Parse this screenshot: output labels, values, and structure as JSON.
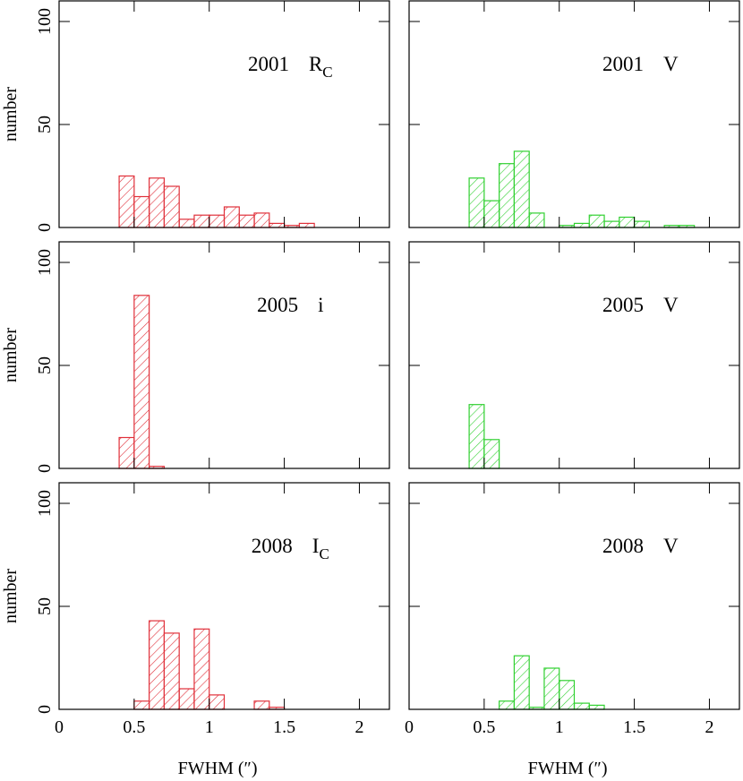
{
  "chart_data": [
    {
      "type": "histogram",
      "year": "2001",
      "band": "R",
      "band_subscript": "C",
      "ylabel": "number",
      "color": "#e0303a",
      "bins": [
        0.3,
        0.4,
        0.5,
        0.6,
        0.7,
        0.8,
        0.9,
        1.0,
        1.1,
        1.2,
        1.3,
        1.4,
        1.5,
        1.6,
        1.7,
        1.8,
        1.9,
        2.0
      ],
      "values": [
        0,
        25,
        15,
        24,
        20,
        4,
        6,
        6,
        10,
        6,
        7,
        2,
        1,
        2,
        0,
        0,
        0
      ],
      "xlim": [
        0,
        2.2
      ],
      "ylim": [
        0,
        110
      ],
      "xticks": [
        0,
        0.5,
        1,
        1.5,
        2
      ],
      "yticks": [
        0,
        50,
        100
      ]
    },
    {
      "type": "histogram",
      "year": "2001",
      "band": "V",
      "color": "#30d030",
      "bins": [
        0.3,
        0.4,
        0.5,
        0.6,
        0.7,
        0.8,
        0.9,
        1.0,
        1.1,
        1.2,
        1.3,
        1.4,
        1.5,
        1.6,
        1.7,
        1.8,
        1.9,
        2.0
      ],
      "values": [
        0,
        24,
        13,
        31,
        37,
        7,
        0,
        1,
        2,
        6,
        3,
        5,
        3,
        0,
        1,
        1,
        0
      ],
      "xlim": [
        0,
        2.2
      ],
      "ylim": [
        0,
        110
      ],
      "xticks": [
        0,
        0.5,
        1,
        1.5,
        2
      ],
      "yticks": [
        0,
        50,
        100
      ]
    },
    {
      "type": "histogram",
      "year": "2005",
      "band": "i",
      "ylabel": "number",
      "color": "#e0303a",
      "bins": [
        0.3,
        0.4,
        0.5,
        0.6,
        0.7,
        0.8,
        0.9,
        1.0,
        1.1,
        1.2,
        1.3,
        1.4,
        1.5,
        1.6,
        1.7,
        1.8,
        1.9,
        2.0
      ],
      "values": [
        0,
        15,
        84,
        1,
        0,
        0,
        0,
        0,
        0,
        0,
        0,
        0,
        0,
        0,
        0,
        0,
        0
      ],
      "xlim": [
        0,
        2.2
      ],
      "ylim": [
        0,
        110
      ],
      "xticks": [
        0,
        0.5,
        1,
        1.5,
        2
      ],
      "yticks": [
        0,
        50,
        100
      ]
    },
    {
      "type": "histogram",
      "year": "2005",
      "band": "V",
      "color": "#30d030",
      "bins": [
        0.3,
        0.4,
        0.5,
        0.6,
        0.7,
        0.8,
        0.9,
        1.0,
        1.1,
        1.2,
        1.3,
        1.4,
        1.5,
        1.6,
        1.7,
        1.8,
        1.9,
        2.0
      ],
      "values": [
        0,
        31,
        14,
        0,
        0,
        0,
        0,
        0,
        0,
        0,
        0,
        0,
        0,
        0,
        0,
        0,
        0
      ],
      "xlim": [
        0,
        2.2
      ],
      "ylim": [
        0,
        110
      ],
      "xticks": [
        0,
        0.5,
        1,
        1.5,
        2
      ],
      "yticks": [
        0,
        50,
        100
      ]
    },
    {
      "type": "histogram",
      "year": "2008",
      "band": "I",
      "band_subscript": "C",
      "ylabel": "number",
      "xlabel": "FWHM  (″)",
      "color": "#e0303a",
      "bins": [
        0.3,
        0.4,
        0.5,
        0.6,
        0.7,
        0.8,
        0.9,
        1.0,
        1.1,
        1.2,
        1.3,
        1.4,
        1.5,
        1.6,
        1.7,
        1.8,
        1.9,
        2.0
      ],
      "values": [
        0,
        0,
        4,
        43,
        37,
        10,
        39,
        7,
        0,
        0,
        4,
        1,
        0,
        0,
        0,
        0,
        0
      ],
      "xlim": [
        0,
        2.2
      ],
      "ylim": [
        0,
        110
      ],
      "xticks": [
        0,
        0.5,
        1,
        1.5,
        2
      ],
      "yticks": [
        0,
        50,
        100
      ]
    },
    {
      "type": "histogram",
      "year": "2008",
      "band": "V",
      "xlabel": "FWHM  (″)",
      "color": "#30d030",
      "bins": [
        0.3,
        0.4,
        0.5,
        0.6,
        0.7,
        0.8,
        0.9,
        1.0,
        1.1,
        1.2,
        1.3,
        1.4,
        1.5,
        1.6,
        1.7,
        1.8,
        1.9,
        2.0
      ],
      "values": [
        0,
        0,
        0,
        4,
        26,
        1,
        20,
        14,
        3,
        2,
        0,
        0,
        0,
        0,
        0,
        0,
        0
      ],
      "xlim": [
        0,
        2.2
      ],
      "ylim": [
        0,
        110
      ],
      "xticks": [
        0,
        0.5,
        1,
        1.5,
        2
      ],
      "yticks": [
        0,
        50,
        100
      ]
    }
  ]
}
